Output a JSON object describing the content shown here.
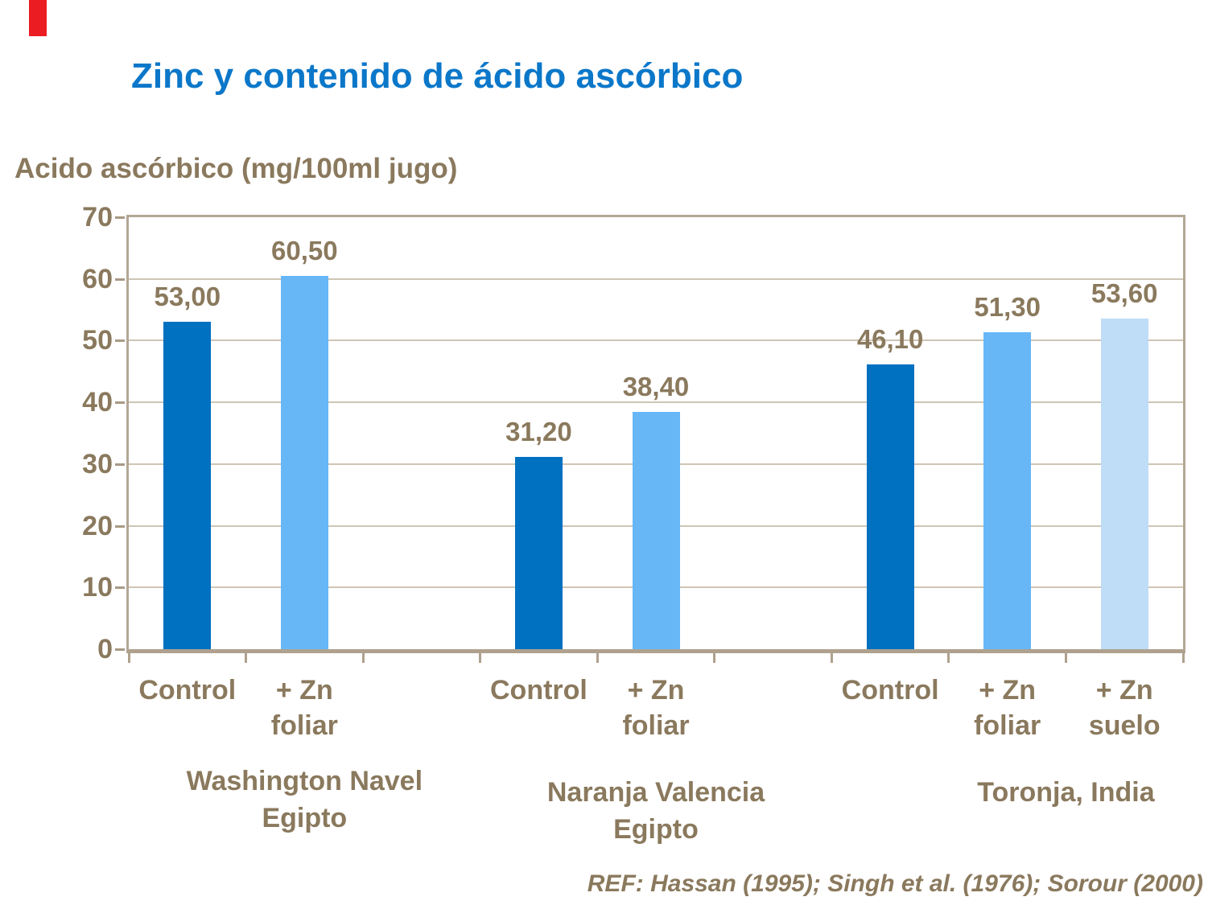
{
  "slide": {
    "title": "Zinc y contenido de ácido ascórbico",
    "reference": "REF: Hassan (1995); Singh et al. (1976); Sorour (2000)",
    "title_color": "#0B77C9",
    "text_color": "#8A795D",
    "frame_color": "#B4A795",
    "gridline_color": "#CFC5B5",
    "marker_color": "#EC1C23"
  },
  "chart_data": {
    "type": "bar",
    "title": "Zinc y contenido de ácido ascórbico",
    "ylabel": "Acido ascórbico (mg/100ml jugo)",
    "xlabel": "",
    "ylim": [
      0,
      70
    ],
    "ytick_interval": 10,
    "grid": true,
    "legend": "none",
    "decimal_separator": ",",
    "series_colors": {
      "control": "#0070C0",
      "zn_foliar": "#67B7F7",
      "zn_suelo": "#BFDDF7"
    },
    "groups": [
      {
        "label": "Washington Navel\nEgipto",
        "bars": [
          {
            "category": "Control",
            "series": "control",
            "value": 53.0,
            "display": "53,00"
          },
          {
            "category": "+ Zn\nfoliar",
            "series": "zn_foliar",
            "value": 60.5,
            "display": "60,50"
          }
        ]
      },
      {
        "label": "Naranja Valencia\nEgipto",
        "bars": [
          {
            "category": "Control",
            "series": "control",
            "value": 31.2,
            "display": "31,20"
          },
          {
            "category": "+ Zn\nfoliar",
            "series": "zn_foliar",
            "value": 38.4,
            "display": "38,40"
          }
        ]
      },
      {
        "label": "Toronja, India",
        "bars": [
          {
            "category": "Control",
            "series": "control",
            "value": 46.1,
            "display": "46,10"
          },
          {
            "category": "+ Zn\nfoliar",
            "series": "zn_foliar",
            "value": 51.3,
            "display": "51,30"
          },
          {
            "category": "+ Zn\nsuelo",
            "series": "zn_suelo",
            "value": 53.6,
            "display": "53,60"
          }
        ]
      }
    ]
  }
}
